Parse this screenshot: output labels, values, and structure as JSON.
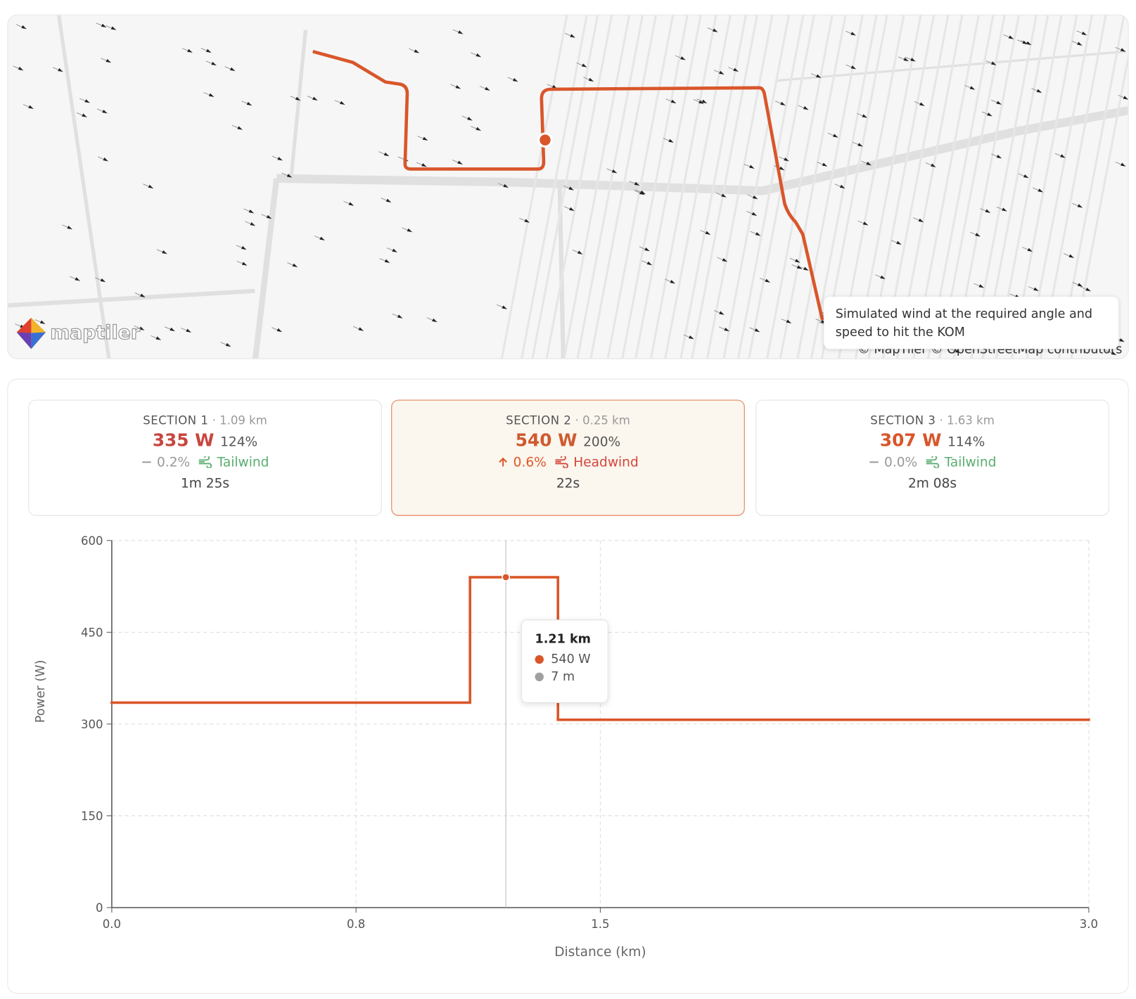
{
  "map": {
    "logo": "maptiler",
    "attribution": "© MapTiler © OpenStreetMap contributors",
    "caption": "Simulated wind at the required angle and speed to hit the KOM"
  },
  "sections": [
    {
      "label": "SECTION 1",
      "distance": "1.09 km",
      "power": "335 W",
      "percent": "124%",
      "gradient": "0.2%",
      "wind": "Tailwind",
      "time": "1m 25s"
    },
    {
      "label": "SECTION 2",
      "distance": "0.25 km",
      "power": "540 W",
      "percent": "200%",
      "gradient": "0.6%",
      "wind": "Headwind",
      "time": "22s"
    },
    {
      "label": "SECTION 3",
      "distance": "1.63 km",
      "power": "307 W",
      "percent": "114%",
      "gradient": "0.0%",
      "wind": "Tailwind",
      "time": "2m 08s"
    }
  ],
  "chart_data": {
    "type": "step",
    "xlabel": "Distance (km)",
    "ylabel": "Power (W)",
    "xlim": [
      0,
      3
    ],
    "xticks": [
      {
        "value": 0,
        "label": "0.0"
      },
      {
        "value": 0.75,
        "label": "0.8"
      },
      {
        "value": 1.5,
        "label": "1.5"
      },
      {
        "value": 3,
        "label": "3.0"
      }
    ],
    "ylim": [
      0,
      600
    ],
    "yticks": [
      0,
      150,
      300,
      450,
      600
    ],
    "grid": true,
    "series": [
      {
        "name": "Power",
        "color": "#d9562a",
        "x": [
          0,
          1.1,
          1.37
        ],
        "values": [
          335,
          540,
          307
        ]
      }
    ],
    "tooltip": {
      "x": {
        "value": 1.21,
        "label": "1.21 km"
      },
      "items": [
        {
          "value": 540,
          "label": "540 W",
          "color": "#d9562a"
        },
        {
          "value": 7,
          "label": "7 m",
          "color": "#a0a0a0"
        }
      ]
    }
  }
}
